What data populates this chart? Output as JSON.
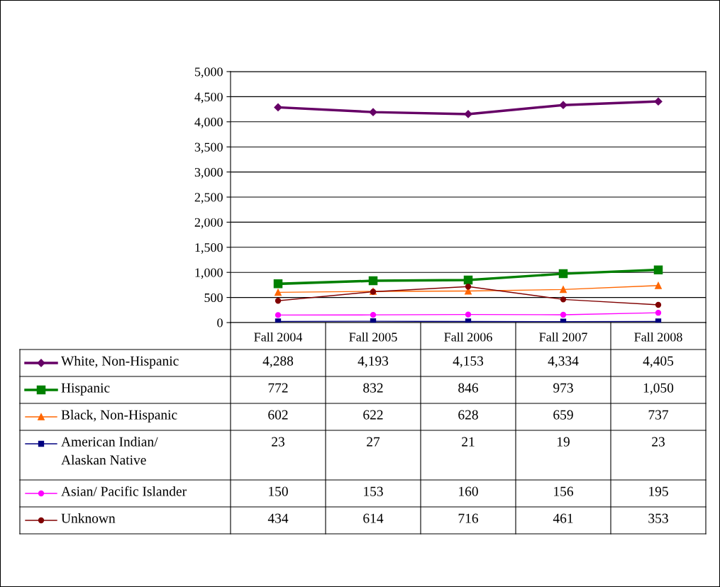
{
  "chart_data": {
    "type": "line",
    "categories": [
      "Fall 2004",
      "Fall 2005",
      "Fall 2006",
      "Fall 2007",
      "Fall 2008"
    ],
    "ylim": [
      0,
      5000
    ],
    "yticks": [
      {
        "value": 0,
        "label": "0"
      },
      {
        "value": 500,
        "label": "500"
      },
      {
        "value": 1000,
        "label": "1,000"
      },
      {
        "value": 1500,
        "label": "1,500"
      },
      {
        "value": 2000,
        "label": "2,000"
      },
      {
        "value": 2500,
        "label": "2,500"
      },
      {
        "value": 3000,
        "label": "3,000"
      },
      {
        "value": 3500,
        "label": "3,500"
      },
      {
        "value": 4000,
        "label": "4,000"
      },
      {
        "value": 4500,
        "label": "4,500"
      },
      {
        "value": 5000,
        "label": "5,000"
      }
    ],
    "grid": "y",
    "legend": "bottom",
    "series": [
      {
        "name": "White, Non-Hispanic",
        "color": "#660066",
        "marker": "diamond",
        "values": [
          4288,
          4193,
          4153,
          4334,
          4405
        ],
        "value_labels": [
          "4,288",
          "4,193",
          "4,153",
          "4,334",
          "4,405"
        ]
      },
      {
        "name": "Hispanic",
        "color": "#008000",
        "marker": "square",
        "values": [
          772,
          832,
          846,
          973,
          1050
        ],
        "value_labels": [
          "772",
          "832",
          "846",
          "973",
          "1,050"
        ]
      },
      {
        "name": "Black, Non-Hispanic",
        "color": "#ff6600",
        "marker": "triangle",
        "values": [
          602,
          622,
          628,
          659,
          737
        ],
        "value_labels": [
          "602",
          "622",
          "628",
          "659",
          "737"
        ]
      },
      {
        "name": "American Indian/\nAlaskan Native",
        "color": "#000080",
        "marker": "square",
        "values": [
          23,
          27,
          21,
          19,
          23
        ],
        "value_labels": [
          "23",
          "27",
          "21",
          "19",
          "23"
        ]
      },
      {
        "name": "Asian/ Pacific Islander",
        "color": "#ff00ff",
        "marker": "circle",
        "values": [
          150,
          153,
          160,
          156,
          195
        ],
        "value_labels": [
          "150",
          "153",
          "160",
          "156",
          "195"
        ]
      },
      {
        "name": "Unknown",
        "color": "#800000",
        "marker": "circle",
        "values": [
          434,
          614,
          716,
          461,
          353
        ],
        "value_labels": [
          "434",
          "614",
          "716",
          "461",
          "353"
        ]
      }
    ]
  }
}
